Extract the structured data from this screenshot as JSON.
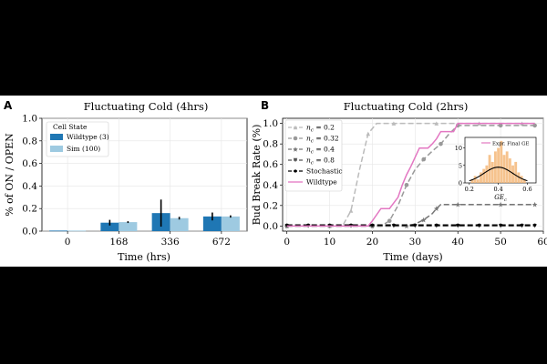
{
  "chart_data": [
    {
      "panel": "A",
      "type": "bar",
      "title": "Fluctuating Cold (4hrs)",
      "xlabel": "Time (hrs)",
      "ylabel": "% of ON / OPEN",
      "ylim": [
        0,
        1.0
      ],
      "yticks": [
        "0.0",
        "0.2",
        "0.4",
        "0.6",
        "0.8",
        "1.0"
      ],
      "categories": [
        "0",
        "168",
        "336",
        "672"
      ],
      "legend_title": "Cell State",
      "series": [
        {
          "name": "Wildtype (3)",
          "color": "#1f77b4",
          "values": [
            0.005,
            0.075,
            0.16,
            0.13
          ],
          "errors": [
            0.0,
            0.025,
            0.12,
            0.035
          ]
        },
        {
          "name": "Sim (100)",
          "color": "#9ecae1",
          "values": [
            0.005,
            0.08,
            0.115,
            0.13
          ],
          "errors": [
            0.0,
            0.008,
            0.012,
            0.01
          ]
        }
      ]
    },
    {
      "panel": "B",
      "type": "line",
      "title": "Fluctuating Cold (2hrs)",
      "xlabel": "Time (days)",
      "ylabel": "Bud Break Rate (%)",
      "xlim": [
        -1,
        60
      ],
      "ylim": [
        -0.05,
        1.05
      ],
      "xticks": [
        "0",
        "10",
        "20",
        "30",
        "40",
        "50",
        "60"
      ],
      "yticks": [
        "0.0",
        "0.2",
        "0.4",
        "0.6",
        "0.8",
        "1.0"
      ],
      "series": [
        {
          "name": "nc = 0.2",
          "legend_base": "n",
          "legend_sub": "c",
          "legend_rest": " = 0.2",
          "color": "#bbbbbb",
          "dash": "6,3",
          "marker": "triangle",
          "x": [
            0,
            5,
            10,
            13,
            15,
            17,
            19,
            21,
            25,
            30,
            35,
            40,
            45,
            50,
            55,
            58
          ],
          "y": [
            0,
            0,
            0,
            0,
            0.15,
            0.55,
            0.9,
            1.0,
            1.0,
            1.0,
            1.0,
            1.0,
            1.0,
            1.0,
            1.0,
            1.0
          ]
        },
        {
          "name": "nc = 0.32",
          "legend_base": "n",
          "legend_sub": "c",
          "legend_rest": " = 0.32",
          "color": "#999999",
          "dash": "6,3",
          "marker": "circle",
          "x": [
            0,
            5,
            10,
            15,
            20,
            22,
            24,
            26,
            28,
            30,
            32,
            34,
            36,
            38,
            40,
            45,
            50,
            55,
            58
          ],
          "y": [
            0,
            0,
            0,
            0,
            0,
            0,
            0.05,
            0.2,
            0.4,
            0.55,
            0.65,
            0.73,
            0.8,
            0.9,
            0.98,
            0.98,
            0.98,
            0.98,
            0.98
          ]
        },
        {
          "name": "nc = 0.4",
          "legend_base": "n",
          "legend_sub": "c",
          "legend_rest": " = 0.4",
          "color": "#777777",
          "dash": "6,3",
          "marker": "star",
          "x": [
            0,
            10,
            20,
            25,
            28,
            30,
            32,
            34,
            35,
            36,
            40,
            45,
            50,
            55,
            58
          ],
          "y": [
            0,
            0,
            0,
            0,
            0,
            0.02,
            0.06,
            0.12,
            0.17,
            0.21,
            0.21,
            0.21,
            0.21,
            0.21,
            0.21
          ]
        },
        {
          "name": "nc = 0.8",
          "legend_base": "n",
          "legend_sub": "c",
          "legend_rest": " = 0.8",
          "color": "#555555",
          "dash": "6,3",
          "marker": "triangle-down",
          "x": [
            0,
            5,
            10,
            15,
            20,
            25,
            30,
            35,
            40,
            45,
            50,
            55,
            58
          ],
          "y": [
            0,
            0,
            0,
            0,
            0,
            0,
            0,
            0,
            0,
            0,
            0,
            0,
            0
          ]
        },
        {
          "name": "Stochastic",
          "color": "#000000",
          "dash": "6,3",
          "marker": "point",
          "x": [
            0,
            5,
            10,
            15,
            20,
            25,
            30,
            35,
            40,
            45,
            50,
            55,
            58
          ],
          "y": [
            0.01,
            0.01,
            0.01,
            0.01,
            0.01,
            0.01,
            0.01,
            0.01,
            0.01,
            0.01,
            0.01,
            0.01,
            0.01
          ]
        },
        {
          "name": "Wildtype",
          "color": "#e377c2",
          "dash": "",
          "marker": "none",
          "x": [
            0,
            19,
            20,
            22,
            23,
            24,
            26,
            27,
            28,
            29,
            30,
            31,
            32,
            33,
            34,
            35,
            36,
            37,
            38,
            39,
            40,
            58
          ],
          "y": [
            0,
            0,
            0.05,
            0.17,
            0.17,
            0.17,
            0.28,
            0.4,
            0.5,
            0.58,
            0.67,
            0.76,
            0.76,
            0.76,
            0.8,
            0.85,
            0.92,
            0.92,
            0.92,
            0.92,
            1.0,
            1.0
          ]
        }
      ],
      "inset": {
        "xlabel": "GE",
        "xlabel_sub": "c",
        "legend": "Expr. Final GE",
        "xticks": [
          "0.2",
          "0.4",
          "0.6"
        ],
        "yticks": [
          "0",
          "5",
          "10"
        ],
        "xlim": [
          0.17,
          0.66
        ],
        "ylim": [
          0,
          13
        ],
        "bins": [
          0.22,
          0.24,
          0.26,
          0.28,
          0.3,
          0.32,
          0.34,
          0.36,
          0.38,
          0.4,
          0.42,
          0.44,
          0.46,
          0.48,
          0.5,
          0.52,
          0.54,
          0.56,
          0.58
        ],
        "counts": [
          1,
          2,
          1,
          3,
          4,
          5,
          8,
          6,
          9,
          10,
          12,
          8,
          9,
          7,
          5,
          6,
          3,
          2,
          1
        ],
        "curve_peak": 4.5,
        "curve_mean": 0.4,
        "curve_sd": 0.1
      }
    }
  ]
}
